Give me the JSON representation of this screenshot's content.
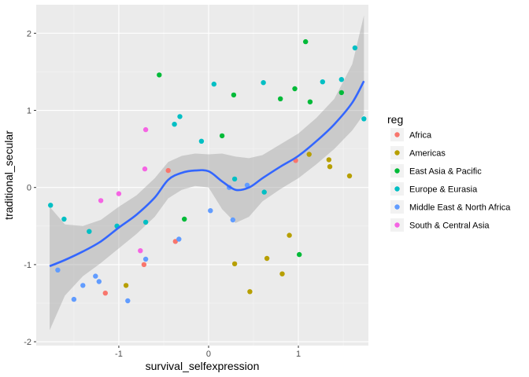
{
  "chart_data": {
    "type": "scatter",
    "xlabel": "survival_selfexpression",
    "ylabel": "traditional_secular",
    "xlim": [
      -1.92,
      1.78
    ],
    "ylim": [
      -2.05,
      2.37
    ],
    "x_ticks": [
      -1,
      0,
      1
    ],
    "x_tick_labels": [
      "-1",
      "0",
      "1"
    ],
    "y_ticks": [
      -2,
      -1,
      0,
      1,
      2
    ],
    "y_tick_labels": [
      "-2",
      "-1",
      "0",
      "1",
      "2"
    ],
    "grid": true,
    "legend": {
      "title": "reg",
      "position": "right",
      "entries": [
        {
          "label": "Africa",
          "color": "#F8766D"
        },
        {
          "label": "Americas",
          "color": "#B79F00"
        },
        {
          "label": "East Asia & Pacific",
          "color": "#00BA38"
        },
        {
          "label": "Europe & Eurasia",
          "color": "#00BFC4"
        },
        {
          "label": "Middle East & North Africa",
          "color": "#619CFF"
        },
        {
          "label": "South & Central Asia",
          "color": "#F564E3"
        }
      ]
    },
    "series": [
      {
        "name": "Africa",
        "color": "#F8766D",
        "points": [
          [
            -0.45,
            0.22
          ],
          [
            0.97,
            0.35
          ],
          [
            -0.72,
            -1.0
          ],
          [
            -1.15,
            -1.37
          ],
          [
            -0.37,
            -0.7
          ]
        ]
      },
      {
        "name": "Americas",
        "color": "#B79F00",
        "points": [
          [
            -0.92,
            -1.27
          ],
          [
            0.29,
            -0.99
          ],
          [
            0.46,
            -1.35
          ],
          [
            0.65,
            -0.92
          ],
          [
            0.82,
            -1.12
          ],
          [
            0.9,
            -0.62
          ],
          [
            1.12,
            0.43
          ],
          [
            1.34,
            0.36
          ],
          [
            1.35,
            0.27
          ],
          [
            1.57,
            0.15
          ]
        ]
      },
      {
        "name": "East Asia & Pacific",
        "color": "#00BA38",
        "points": [
          [
            -0.55,
            1.46
          ],
          [
            0.28,
            1.2
          ],
          [
            0.15,
            0.67
          ],
          [
            0.8,
            1.15
          ],
          [
            0.96,
            1.28
          ],
          [
            1.08,
            1.89
          ],
          [
            1.13,
            1.11
          ],
          [
            1.48,
            1.23
          ],
          [
            -0.27,
            -0.41
          ],
          [
            1.01,
            -0.87
          ]
        ]
      },
      {
        "name": "Europe & Eurasia",
        "color": "#00BFC4",
        "points": [
          [
            -1.76,
            -0.23
          ],
          [
            -1.61,
            -0.41
          ],
          [
            -1.33,
            -0.57
          ],
          [
            -1.02,
            -0.5
          ],
          [
            -0.7,
            -0.45
          ],
          [
            -0.38,
            0.82
          ],
          [
            -0.32,
            0.92
          ],
          [
            -0.08,
            0.6
          ],
          [
            0.06,
            1.34
          ],
          [
            0.61,
            1.36
          ],
          [
            1.27,
            1.37
          ],
          [
            1.48,
            1.4
          ],
          [
            1.63,
            1.81
          ],
          [
            1.73,
            0.89
          ],
          [
            0.62,
            -0.06
          ],
          [
            0.29,
            0.11
          ]
        ]
      },
      {
        "name": "Middle East & North Africa",
        "color": "#619CFF",
        "points": [
          [
            -1.68,
            -1.07
          ],
          [
            -1.5,
            -1.45
          ],
          [
            -1.4,
            -1.27
          ],
          [
            -1.26,
            -1.15
          ],
          [
            -1.22,
            -1.22
          ],
          [
            -0.9,
            -1.47
          ],
          [
            -0.7,
            -0.93
          ],
          [
            -0.33,
            -0.67
          ],
          [
            0.02,
            -0.3
          ],
          [
            0.27,
            -0.42
          ],
          [
            0.23,
            0.0
          ],
          [
            0.43,
            0.03
          ]
        ]
      },
      {
        "name": "South & Central Asia",
        "color": "#F564E3",
        "points": [
          [
            -1.0,
            -0.08
          ],
          [
            -0.71,
            0.24
          ],
          [
            -0.7,
            0.75
          ],
          [
            -0.76,
            -0.82
          ],
          [
            -1.2,
            -0.17
          ]
        ]
      }
    ],
    "smooth": {
      "method": "loess",
      "color": "#3366FF",
      "ribbon_color": "#999999",
      "x": [
        -1.77,
        -1.6,
        -1.4,
        -1.2,
        -1.0,
        -0.8,
        -0.6,
        -0.45,
        -0.3,
        -0.15,
        0.0,
        0.15,
        0.3,
        0.45,
        0.6,
        0.8,
        1.0,
        1.2,
        1.4,
        1.6,
        1.73
      ],
      "y": [
        -1.02,
        -0.94,
        -0.83,
        -0.7,
        -0.52,
        -0.35,
        -0.13,
        0.1,
        0.19,
        0.22,
        0.21,
        0.08,
        -0.03,
        0.0,
        0.12,
        0.27,
        0.41,
        0.6,
        0.82,
        1.1,
        1.38
      ],
      "lower": [
        -1.85,
        -1.4,
        -1.15,
        -0.98,
        -0.79,
        -0.6,
        -0.38,
        -0.14,
        -0.03,
        0.02,
        0.0,
        -0.28,
        -0.46,
        -0.38,
        -0.18,
        -0.02,
        0.12,
        0.3,
        0.5,
        0.74,
        0.95
      ],
      "upper": [
        -0.25,
        -0.48,
        -0.5,
        -0.42,
        -0.25,
        -0.1,
        0.12,
        0.33,
        0.41,
        0.44,
        0.43,
        0.44,
        0.4,
        0.38,
        0.42,
        0.56,
        0.7,
        0.9,
        1.15,
        1.6,
        2.23
      ]
    }
  }
}
